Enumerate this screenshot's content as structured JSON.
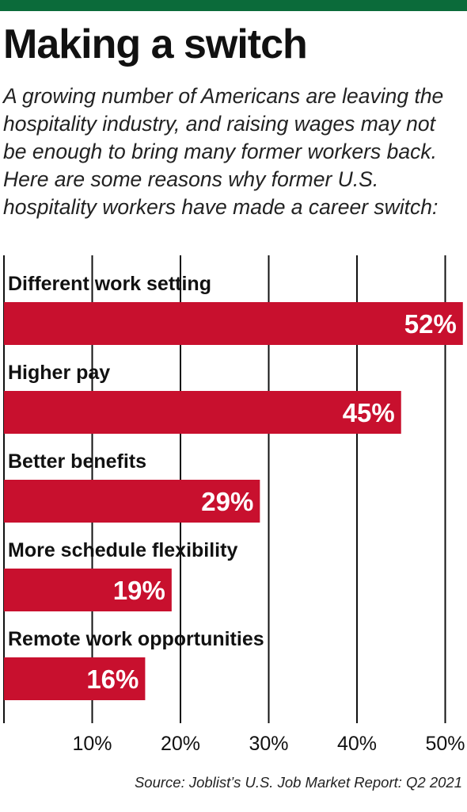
{
  "header": {
    "title": "Making a switch",
    "subtitle": "A growing number of Americans are leaving the hospitality industry, and raising wages may not be enough to bring many former workers back. Here are some reasons why former U.S. hospitality workers have made a career switch:"
  },
  "colors": {
    "accent_bar": "#0b6b3a",
    "bar": "#c8102e",
    "bar_label": "#ffffff",
    "grid": "#111111"
  },
  "chart_data": {
    "type": "bar",
    "orientation": "horizontal",
    "categories": [
      "Different work setting",
      "Higher pay",
      "Better benefits",
      "More schedule flexibility",
      "Remote work opportunities"
    ],
    "values": [
      52,
      45,
      29,
      19,
      16
    ],
    "value_labels": [
      "52%",
      "45%",
      "29%",
      "19%",
      "16%"
    ],
    "xlim": [
      0,
      52
    ],
    "xticks": [
      10,
      20,
      30,
      40,
      50
    ],
    "xtick_labels": [
      "10%",
      "20%",
      "30%",
      "40%",
      "50%"
    ],
    "grid": true
  },
  "footer": {
    "source": "Source: Joblist’s U.S. Job Market Report: Q2 2021"
  }
}
